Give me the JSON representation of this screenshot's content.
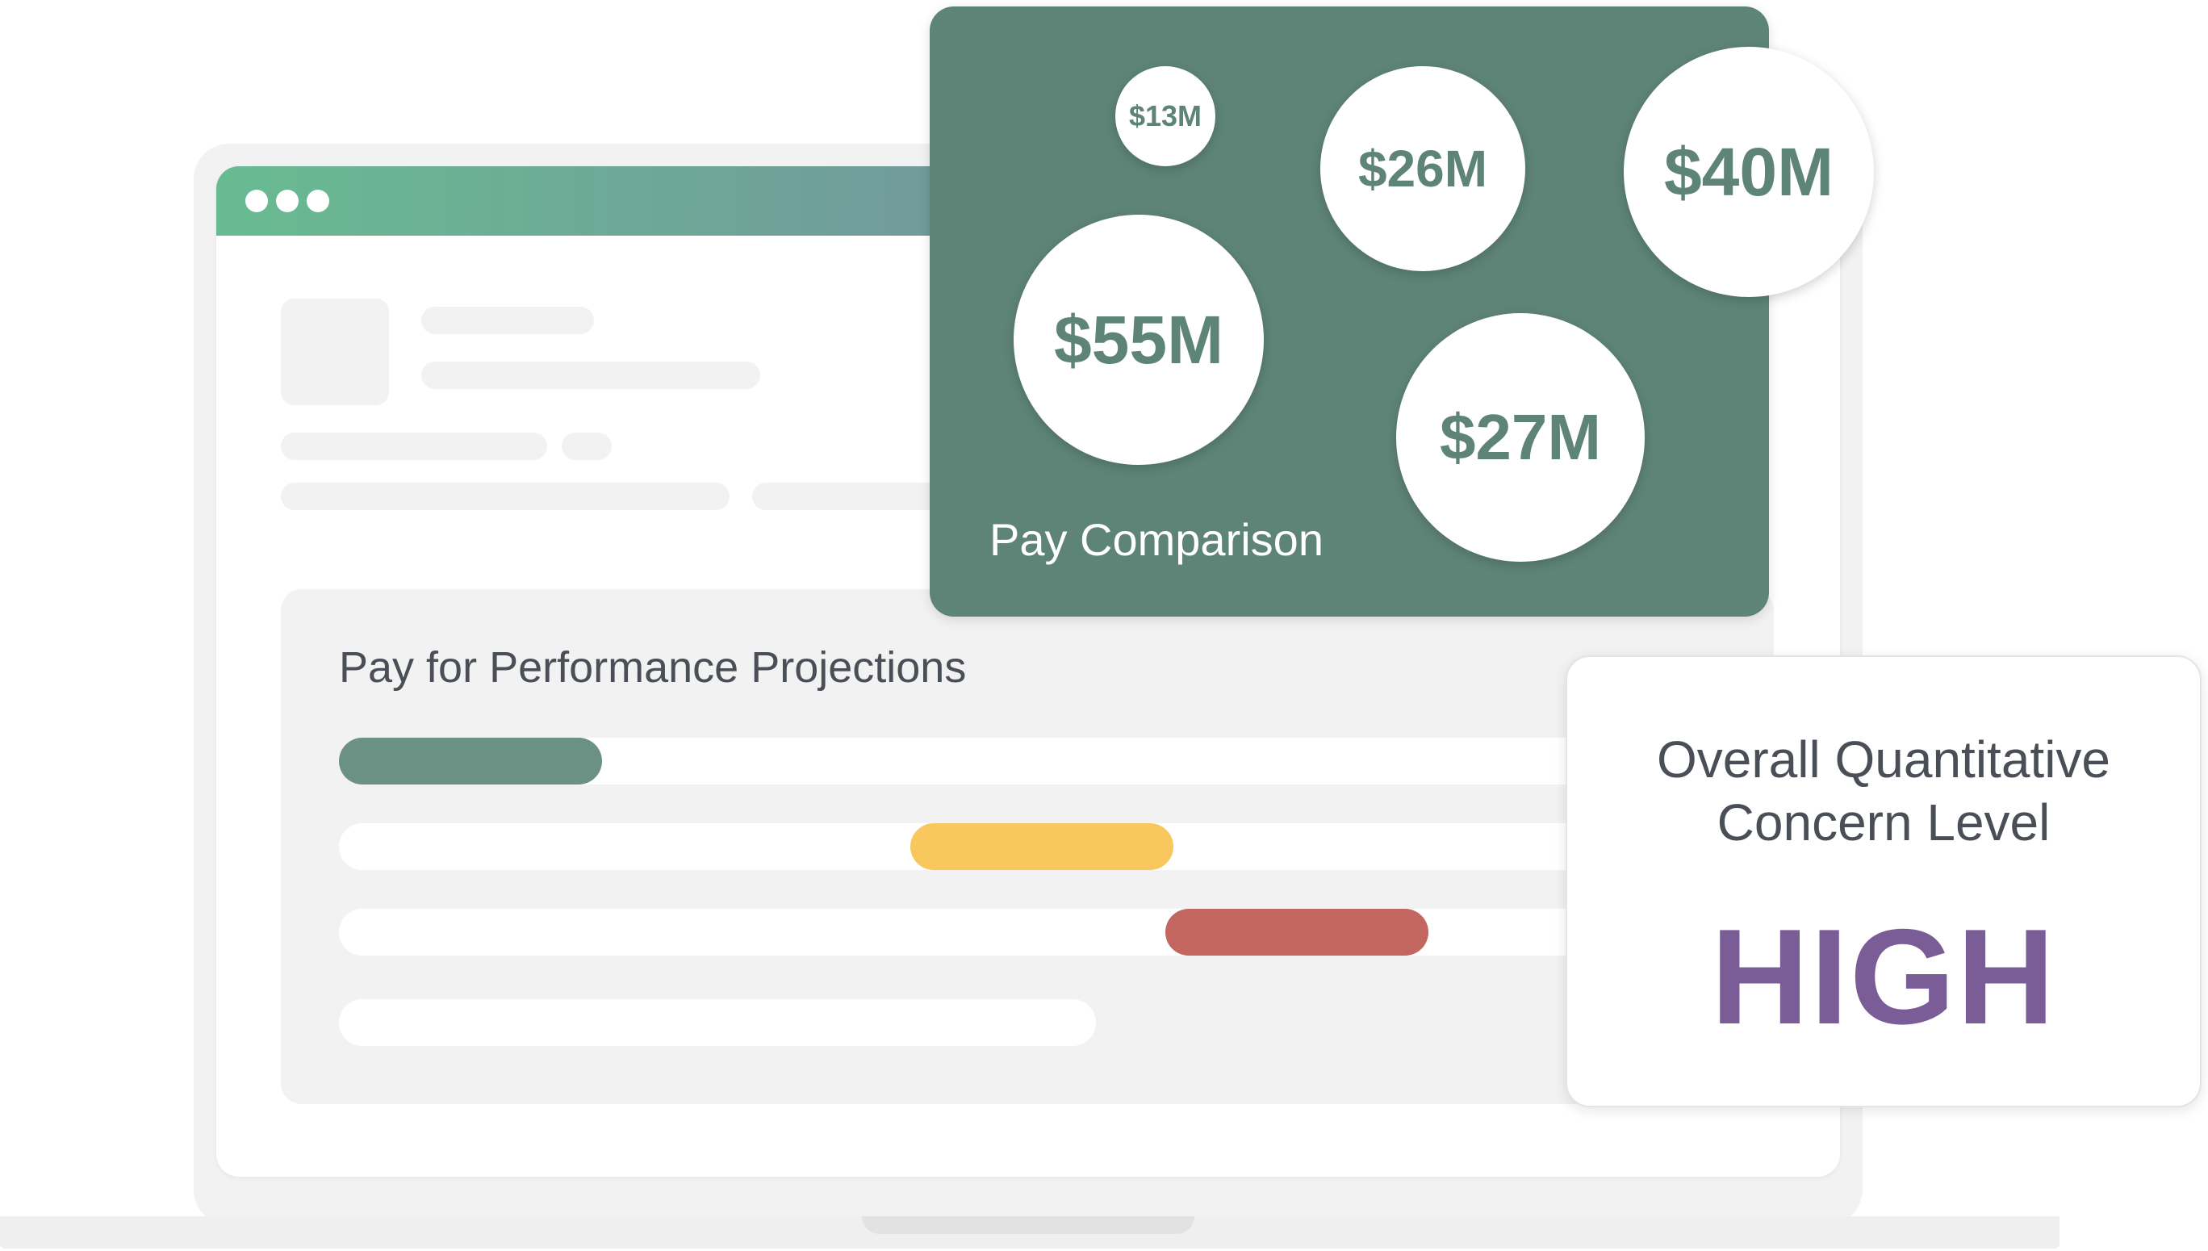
{
  "colors": {
    "brand_green": "#5e8478",
    "bar_green": "#6b9184",
    "bar_yellow": "#f8c85f",
    "bar_red": "#c2665f",
    "concern_purple": "#7a5c97"
  },
  "browser": {
    "window_controls": [
      "dot-icon",
      "dot-icon",
      "dot-icon"
    ]
  },
  "performance_panel": {
    "title": "Pay for Performance Projections",
    "bars": [
      {
        "status": "green"
      },
      {
        "status": "yellow"
      },
      {
        "status": "red"
      },
      {
        "status": "empty"
      }
    ]
  },
  "pay_comparison": {
    "title": "Pay Comparison",
    "bubbles": [
      {
        "label": "$13M",
        "value": 13
      },
      {
        "label": "$26M",
        "value": 26
      },
      {
        "label": "$40M",
        "value": 40
      },
      {
        "label": "$55M",
        "value": 55
      },
      {
        "label": "$27M",
        "value": 27
      }
    ]
  },
  "concern": {
    "label_line1": "Overall Quantitative",
    "label_line2": "Concern Level",
    "level": "HIGH"
  }
}
